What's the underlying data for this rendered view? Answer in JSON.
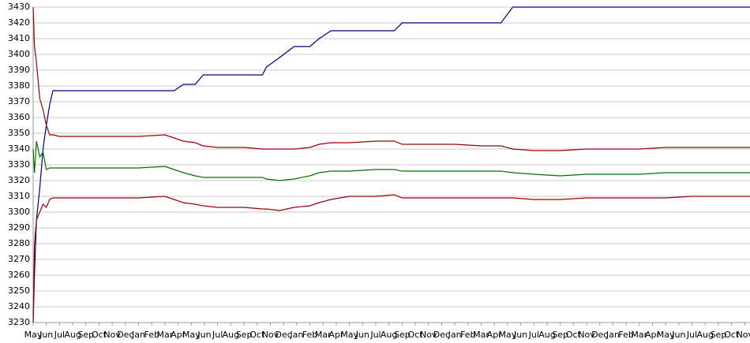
{
  "chart_data": {
    "type": "line",
    "x": [
      0,
      0.1,
      0.25,
      0.5,
      0.75,
      1,
      1.25,
      1.5,
      2,
      4,
      6,
      8,
      10,
      10.7,
      11.4,
      12.3,
      12.9,
      14,
      16,
      17.4,
      17.7,
      18.7,
      19.8,
      21,
      21.7,
      22.6,
      24,
      26,
      27.4,
      28,
      30,
      32,
      34,
      35.5,
      36.4,
      38,
      40,
      42,
      44,
      46,
      48,
      50,
      52,
      54.4
    ],
    "series": [
      {
        "color": "#00007f",
        "values": [
          3230,
          3260,
          3295,
          3315,
          3340,
          3355,
          3368,
          3377,
          3377,
          3377,
          3377,
          3377,
          3377,
          3377,
          3381,
          3381,
          3387,
          3387,
          3387,
          3387,
          3392,
          3398,
          3405,
          3405,
          3410,
          3415,
          3415,
          3415,
          3415,
          3420,
          3420,
          3420,
          3420,
          3420,
          3430,
          3430,
          3430,
          3430,
          3430,
          3430,
          3430,
          3430,
          3430,
          3430
        ]
      },
      {
        "color": "#9a0000",
        "values": [
          3430,
          3405,
          3395,
          3372,
          3365,
          3355,
          3349,
          3349,
          3348,
          3348,
          3348,
          3348,
          3349,
          3347,
          3345,
          3344,
          3342,
          3341,
          3341,
          3340,
          3340,
          3340,
          3340,
          3341,
          3343,
          3344,
          3344,
          3345,
          3345,
          3343,
          3343,
          3343,
          3342,
          3342,
          3340,
          3339,
          3339,
          3340,
          3340,
          3340,
          3341,
          3341,
          3341,
          3341
        ]
      },
      {
        "color": "#007000",
        "values": [
          3340,
          3325,
          3345,
          3335,
          3338,
          3327,
          3328,
          3328,
          3328,
          3328,
          3328,
          3328,
          3329,
          3327,
          3325,
          3323,
          3322,
          3322,
          3322,
          3322,
          3321,
          3320,
          3321,
          3323,
          3325,
          3326,
          3326,
          3327,
          3327,
          3326,
          3326,
          3326,
          3326,
          3326,
          3325,
          3324,
          3323,
          3324,
          3324,
          3324,
          3325,
          3325,
          3325,
          3325
        ]
      },
      {
        "color": "#9a0000",
        "values": [
          3230,
          3280,
          3295,
          3300,
          3305,
          3303,
          3308,
          3309,
          3309,
          3309,
          3309,
          3309,
          3310,
          3308,
          3306,
          3305,
          3304,
          3303,
          3303,
          3302,
          3302,
          3301,
          3303,
          3304,
          3306,
          3308,
          3310,
          3310,
          3311,
          3309,
          3309,
          3309,
          3309,
          3309,
          3309,
          3308,
          3308,
          3309,
          3309,
          3309,
          3309,
          3310,
          3310,
          3310
        ]
      }
    ],
    "xlim": [
      0,
      54.4
    ],
    "xticks": [
      {
        "value": 0,
        "label": "May"
      },
      {
        "value": 1,
        "label": "Jun"
      },
      {
        "value": 2,
        "label": "Jul"
      },
      {
        "value": 3,
        "label": "Aug"
      },
      {
        "value": 4,
        "label": "Sep"
      },
      {
        "value": 5,
        "label": "Oct"
      },
      {
        "value": 6,
        "label": "Nov"
      },
      {
        "value": 7,
        "label": "Dec"
      },
      {
        "value": 8,
        "label": "Jan"
      },
      {
        "value": 9,
        "label": "Feb"
      },
      {
        "value": 10,
        "label": "Mar"
      },
      {
        "value": 11,
        "label": "Apr"
      },
      {
        "value": 12,
        "label": "May"
      },
      {
        "value": 13,
        "label": "Jun"
      },
      {
        "value": 14,
        "label": "Jul"
      },
      {
        "value": 15,
        "label": "Aug"
      },
      {
        "value": 16,
        "label": "Sep"
      },
      {
        "value": 17,
        "label": "Oct"
      },
      {
        "value": 18,
        "label": "Nov"
      },
      {
        "value": 19,
        "label": "Dec"
      },
      {
        "value": 20,
        "label": "Jan"
      },
      {
        "value": 21,
        "label": "Feb"
      },
      {
        "value": 22,
        "label": "Mar"
      },
      {
        "value": 23,
        "label": "Apr"
      },
      {
        "value": 24,
        "label": "May"
      },
      {
        "value": 25,
        "label": "Jun"
      },
      {
        "value": 26,
        "label": "Jul"
      },
      {
        "value": 27,
        "label": "Aug"
      },
      {
        "value": 28,
        "label": "Sep"
      },
      {
        "value": 29,
        "label": "Oct"
      },
      {
        "value": 30,
        "label": "Nov"
      },
      {
        "value": 31,
        "label": "Dec"
      },
      {
        "value": 32,
        "label": "Jan"
      },
      {
        "value": 33,
        "label": "Feb"
      },
      {
        "value": 34,
        "label": "Mar"
      },
      {
        "value": 35,
        "label": "Apr"
      },
      {
        "value": 36,
        "label": "May"
      },
      {
        "value": 37,
        "label": "Jun"
      },
      {
        "value": 38,
        "label": "Jul"
      },
      {
        "value": 39,
        "label": "Aug"
      },
      {
        "value": 40,
        "label": "Sep"
      },
      {
        "value": 41,
        "label": "Oct"
      },
      {
        "value": 42,
        "label": "Nov"
      },
      {
        "value": 43,
        "label": "Dec"
      },
      {
        "value": 44,
        "label": "Jan"
      },
      {
        "value": 45,
        "label": "Feb"
      },
      {
        "value": 46,
        "label": "Mar"
      },
      {
        "value": 47,
        "label": "Apr"
      },
      {
        "value": 48,
        "label": "May"
      },
      {
        "value": 49,
        "label": "Jun"
      },
      {
        "value": 50,
        "label": "Jul"
      },
      {
        "value": 51,
        "label": "Aug"
      },
      {
        "value": 52,
        "label": "Sep"
      },
      {
        "value": 53,
        "label": "Oct"
      },
      {
        "value": 54,
        "label": "Nov"
      }
    ],
    "ylim": [
      3230,
      3430
    ],
    "yticks": [
      3230,
      3240,
      3250,
      3260,
      3270,
      3280,
      3290,
      3300,
      3310,
      3320,
      3330,
      3340,
      3350,
      3360,
      3370,
      3380,
      3390,
      3400,
      3410,
      3420,
      3430
    ],
    "grid": true
  }
}
